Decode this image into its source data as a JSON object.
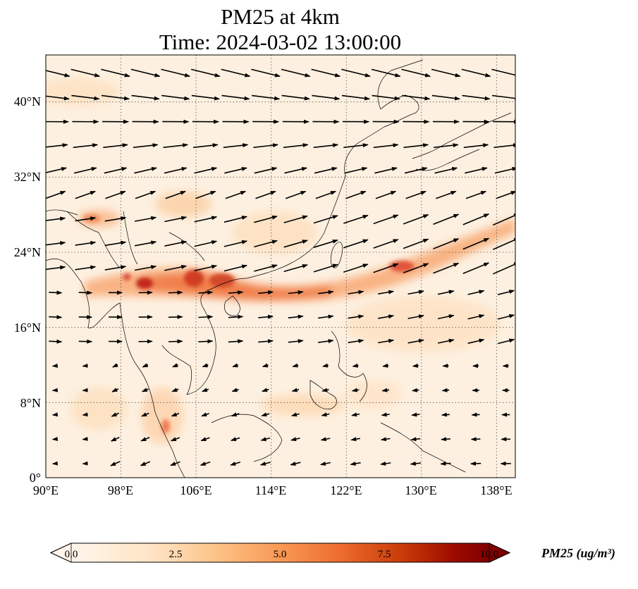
{
  "title": {
    "line1": "PM25 at 4km",
    "line2": "Time: 2024-03-02 13:00:00"
  },
  "map": {
    "extent": {
      "lon_min": 90,
      "lon_max": 140,
      "lat_min": 0,
      "lat_max": 45
    },
    "lat_ticks": [
      {
        "value": 40,
        "label": "40°N"
      },
      {
        "value": 32,
        "label": "32°N"
      },
      {
        "value": 24,
        "label": "24°N"
      },
      {
        "value": 16,
        "label": "16°N"
      },
      {
        "value": 8,
        "label": "8°N"
      },
      {
        "value": 0,
        "label": "0°"
      }
    ],
    "lon_ticks": [
      {
        "value": 90,
        "label": "90°E"
      },
      {
        "value": 98,
        "label": "98°E"
      },
      {
        "value": 106,
        "label": "106°E"
      },
      {
        "value": 114,
        "label": "114°E"
      },
      {
        "value": 122,
        "label": "122°E"
      },
      {
        "value": 130,
        "label": "130°E"
      },
      {
        "value": 138,
        "label": "138°E"
      }
    ],
    "gridlines": "dotted",
    "field": "PM25",
    "vectors": "wind"
  },
  "colorbar": {
    "label": "PM25 (ug/m³)",
    "ticks": [
      "0.0",
      "2.5",
      "5.0",
      "7.5",
      "10.0"
    ],
    "range": [
      0,
      10
    ],
    "extend": "both",
    "colors": [
      "#fff5eb",
      "#fdd9b4",
      "#fdae6b",
      "#f16913",
      "#d94801",
      "#a63603",
      "#7f0000"
    ]
  }
}
